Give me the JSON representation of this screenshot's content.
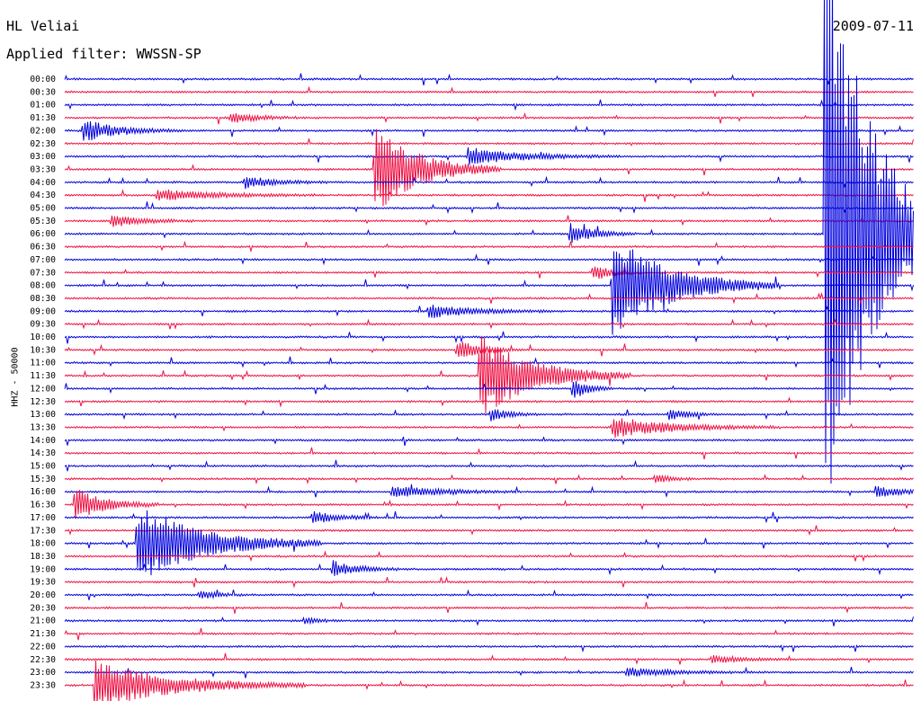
{
  "header": {
    "station": "HL Veliai",
    "date": "2009-07-11",
    "filter": "Applied filter: WWSSN-SP",
    "channel_label": "HHZ - 50000"
  },
  "chart_data": {
    "type": "line",
    "title": "HL Veliai",
    "subtitle": "Applied filter: WWSSN-SP",
    "ylabel": "HHZ - 50000",
    "xlabel": "",
    "row_labels": [
      "00:00",
      "00:30",
      "01:00",
      "01:30",
      "02:00",
      "02:30",
      "03:00",
      "03:30",
      "04:00",
      "04:30",
      "05:00",
      "05:30",
      "06:00",
      "06:30",
      "07:00",
      "07:30",
      "08:00",
      "08:30",
      "09:00",
      "09:30",
      "10:00",
      "10:30",
      "11:00",
      "11:30",
      "12:00",
      "12:30",
      "13:00",
      "13:30",
      "14:00",
      "14:30",
      "15:00",
      "15:30",
      "16:00",
      "16:30",
      "17:00",
      "17:30",
      "18:00",
      "18:30",
      "19:00",
      "19:30",
      "20:00",
      "20:30",
      "21:00",
      "21:30",
      "22:00",
      "22:30",
      "23:00",
      "23:30"
    ],
    "series_colors": [
      "#0000dd",
      "#ee1144"
    ],
    "x_range_minutes": [
      0,
      30
    ],
    "events": [
      {
        "row": 4,
        "minute": 0.6,
        "amplitude": 1.0,
        "duration_min": 1.2
      },
      {
        "row": 3,
        "minute": 5.8,
        "amplitude": 0.6,
        "duration_min": 0.8
      },
      {
        "row": 7,
        "minute": 10.9,
        "amplitude": 4.0,
        "duration_min": 1.5
      },
      {
        "row": 6,
        "minute": 14.2,
        "amplitude": 0.8,
        "duration_min": 1.8
      },
      {
        "row": 8,
        "minute": 6.3,
        "amplitude": 0.6,
        "duration_min": 1.0
      },
      {
        "row": 9,
        "minute": 3.2,
        "amplitude": 0.5,
        "duration_min": 2.0
      },
      {
        "row": 11,
        "minute": 1.6,
        "amplitude": 0.6,
        "duration_min": 1.0
      },
      {
        "row": 12,
        "minute": 17.8,
        "amplitude": 1.0,
        "duration_min": 0.8
      },
      {
        "row": 15,
        "minute": 18.6,
        "amplitude": 0.8,
        "duration_min": 0.6
      },
      {
        "row": 16,
        "minute": 19.3,
        "amplitude": 4.5,
        "duration_min": 2.0
      },
      {
        "row": 18,
        "minute": 12.8,
        "amplitude": 0.6,
        "duration_min": 1.5
      },
      {
        "row": 21,
        "minute": 13.8,
        "amplitude": 0.9,
        "duration_min": 0.8
      },
      {
        "row": 23,
        "minute": 14.6,
        "amplitude": 3.8,
        "duration_min": 1.8
      },
      {
        "row": 24,
        "minute": 17.9,
        "amplitude": 1.1,
        "duration_min": 0.5
      },
      {
        "row": 26,
        "minute": 15.0,
        "amplitude": 0.6,
        "duration_min": 0.6
      },
      {
        "row": 26,
        "minute": 21.3,
        "amplitude": 0.6,
        "duration_min": 0.6
      },
      {
        "row": 27,
        "minute": 19.3,
        "amplitude": 0.9,
        "duration_min": 2.0
      },
      {
        "row": 31,
        "minute": 20.8,
        "amplitude": 0.5,
        "duration_min": 0.5
      },
      {
        "row": 32,
        "minute": 11.5,
        "amplitude": 0.6,
        "duration_min": 1.5
      },
      {
        "row": 32,
        "minute": 28.6,
        "amplitude": 0.5,
        "duration_min": 1.0
      },
      {
        "row": 33,
        "minute": 0.3,
        "amplitude": 1.6,
        "duration_min": 1.0
      },
      {
        "row": 34,
        "minute": 8.7,
        "amplitude": 0.6,
        "duration_min": 0.8
      },
      {
        "row": 36,
        "minute": 2.5,
        "amplitude": 3.5,
        "duration_min": 2.2
      },
      {
        "row": 38,
        "minute": 9.4,
        "amplitude": 0.8,
        "duration_min": 0.8
      },
      {
        "row": 40,
        "minute": 4.7,
        "amplitude": 0.4,
        "duration_min": 0.6
      },
      {
        "row": 42,
        "minute": 8.4,
        "amplitude": 0.3,
        "duration_min": 0.5
      },
      {
        "row": 45,
        "minute": 22.8,
        "amplitude": 0.4,
        "duration_min": 1.0
      },
      {
        "row": 46,
        "minute": 19.8,
        "amplitude": 0.4,
        "duration_min": 1.5
      },
      {
        "row": 47,
        "minute": 1.0,
        "amplitude": 2.2,
        "duration_min": 2.5
      },
      {
        "row": 12,
        "minute": 26.8,
        "amplitude": 30.0,
        "duration_min": 1.5
      }
    ]
  }
}
